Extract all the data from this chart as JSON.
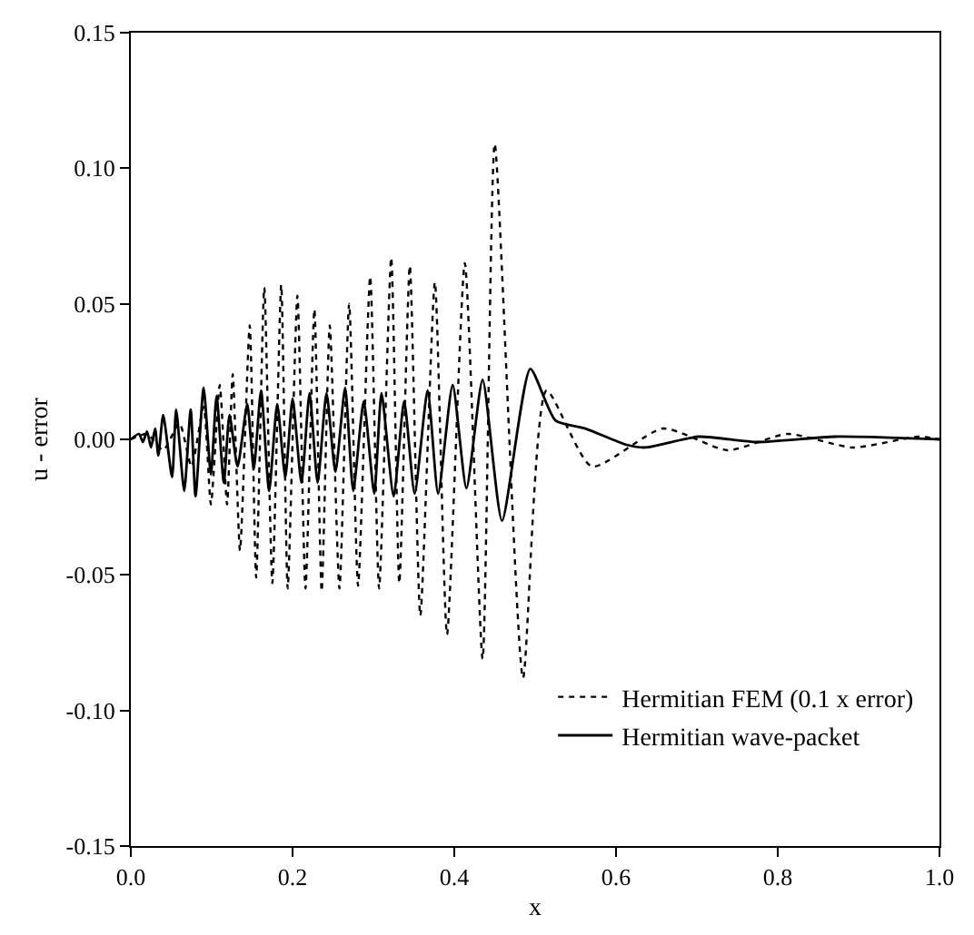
{
  "chart_data": {
    "type": "line",
    "xlabel": "x",
    "ylabel": "u - error",
    "xlim": [
      0,
      1
    ],
    "ylim": [
      -0.15,
      0.15
    ],
    "xticks": [
      {
        "value": 0,
        "label": "0.0"
      },
      {
        "value": 0.2,
        "label": "0.2"
      },
      {
        "value": 0.4,
        "label": "0.4"
      },
      {
        "value": 0.6,
        "label": "0.6"
      },
      {
        "value": 0.8,
        "label": "0.8"
      },
      {
        "value": 1,
        "label": "1.0"
      }
    ],
    "yticks": [
      {
        "value": -0.15,
        "label": "-0.15"
      },
      {
        "value": -0.1,
        "label": "-0.10"
      },
      {
        "value": -0.05,
        "label": "-0.05"
      },
      {
        "value": 0,
        "label": "0.00"
      },
      {
        "value": 0.05,
        "label": "0.05"
      },
      {
        "value": 0.1,
        "label": "0.10"
      },
      {
        "value": 0.15,
        "label": "0.15"
      }
    ],
    "legend": "bottom right",
    "marker": "none",
    "series": [
      {
        "name": "Hermitian FEM (0.1 x error)",
        "color": "#000000",
        "line_style": "dotted",
        "x": [
          0,
          0.02,
          0.04,
          0.06,
          0.075,
          0.09,
          0.099,
          0.11,
          0.119,
          0.126,
          0.135,
          0.147,
          0.155,
          0.165,
          0.175,
          0.186,
          0.194,
          0.206,
          0.216,
          0.227,
          0.236,
          0.246,
          0.258,
          0.27,
          0.281,
          0.296,
          0.307,
          0.322,
          0.332,
          0.345,
          0.358,
          0.376,
          0.391,
          0.413,
          0.435,
          0.45,
          0.485,
          0.514,
          0.57,
          0.658,
          0.738,
          0.812,
          0.893,
          0.974,
          1
        ],
        "values": [
          0,
          0.002,
          -0.004,
          0.006,
          -0.01,
          0.012,
          -0.024,
          0.02,
          -0.024,
          0.024,
          -0.041,
          0.042,
          -0.051,
          0.056,
          -0.053,
          0.057,
          -0.055,
          0.053,
          -0.055,
          0.048,
          -0.056,
          0.042,
          -0.055,
          0.05,
          -0.054,
          0.06,
          -0.055,
          0.067,
          -0.053,
          0.064,
          -0.065,
          0.058,
          -0.072,
          0.065,
          -0.081,
          0.109,
          -0.088,
          0.018,
          -0.01,
          0.004,
          -0.004,
          0.002,
          -0.003,
          0.001,
          0
        ]
      },
      {
        "name": "Hermitian wave-packet",
        "color": "#000000",
        "line_style": "solid",
        "x": [
          0,
          0.01,
          0.015,
          0.02,
          0.025,
          0.03,
          0.034,
          0.04,
          0.051,
          0.056,
          0.066,
          0.074,
          0.08,
          0.09,
          0.099,
          0.106,
          0.115,
          0.122,
          0.132,
          0.144,
          0.152,
          0.161,
          0.171,
          0.181,
          0.191,
          0.2,
          0.211,
          0.221,
          0.231,
          0.242,
          0.253,
          0.265,
          0.275,
          0.288,
          0.301,
          0.31,
          0.325,
          0.338,
          0.351,
          0.367,
          0.38,
          0.398,
          0.415,
          0.435,
          0.459,
          0.494,
          0.525,
          0.562,
          0.613,
          0.636,
          0.702,
          0.775,
          0.871,
          1
        ],
        "values": [
          0,
          0.002,
          -0.001,
          0.003,
          -0.003,
          0.004,
          -0.006,
          0.009,
          -0.014,
          0.011,
          -0.019,
          0.011,
          -0.021,
          0.019,
          -0.013,
          0.016,
          -0.016,
          0.009,
          -0.01,
          0.013,
          -0.011,
          0.018,
          -0.019,
          0.013,
          -0.014,
          0.015,
          -0.016,
          0.017,
          -0.016,
          0.017,
          -0.012,
          0.019,
          -0.019,
          0.014,
          -0.02,
          0.017,
          -0.021,
          0.014,
          -0.02,
          0.018,
          -0.02,
          0.02,
          -0.018,
          0.022,
          -0.03,
          0.026,
          0.007,
          0.004,
          -0.002,
          -0.003,
          0.001,
          -0.001,
          0.001,
          0
        ]
      }
    ]
  }
}
